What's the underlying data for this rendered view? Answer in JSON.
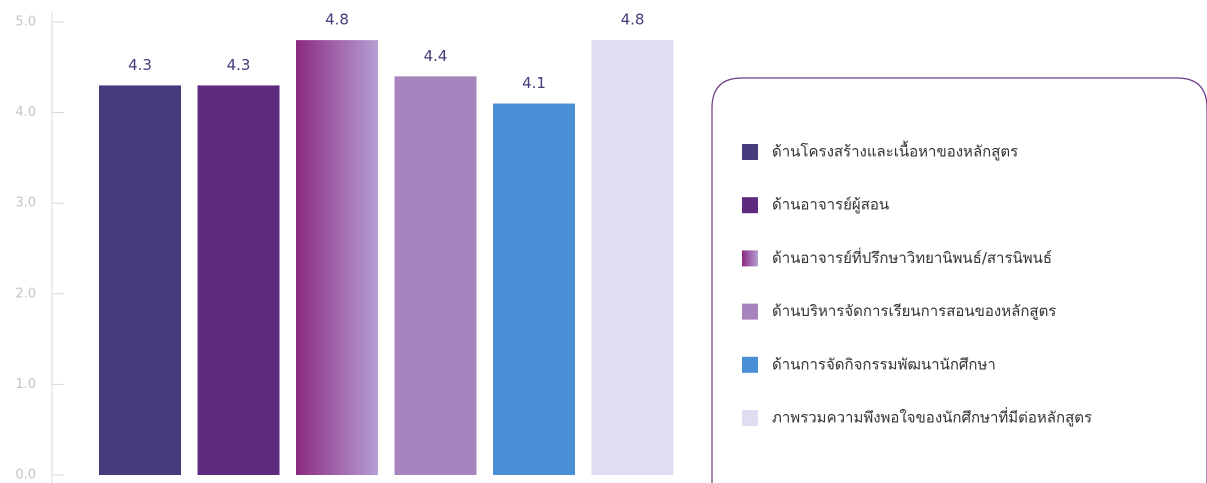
{
  "chart_data": {
    "type": "bar",
    "categories": [
      "ด้านโครงสร้างและเนื้อหาของหลักสูตร",
      "ด้านอาจารย์ผู้สอน",
      "ด้านอาจารย์ที่ปรึกษาวิทยานิพนธ์/สารนิพนธ์",
      "ด้านบริหารจัดการเรียนการสอนของหลักสูตร",
      "ด้านการจัดกิจกรรมพัฒนานักศึกษา",
      "ภาพรวมความพึงพอใจของนักศึกษาที่มีต่อหลักสูตร"
    ],
    "values": [
      4.3,
      4.3,
      4.8,
      4.4,
      4.1,
      4.8
    ],
    "colors": [
      "#453c7c",
      "#5e2b80",
      {
        "gradient": [
          "#8c2a82",
          "#b59fd3"
        ]
      },
      "#a784be",
      "#4a8fd6",
      "#e1dcf1"
    ],
    "ylim": [
      0,
      5
    ],
    "yticks": [
      {
        "value": 0,
        "label": "0.0"
      },
      {
        "value": 1,
        "label": "1.0"
      },
      {
        "value": 2,
        "label": "2.0"
      },
      {
        "value": 3,
        "label": "3.0"
      },
      {
        "value": 4,
        "label": "4.0"
      },
      {
        "value": 5,
        "label": "5.0"
      }
    ],
    "legend": "right"
  }
}
